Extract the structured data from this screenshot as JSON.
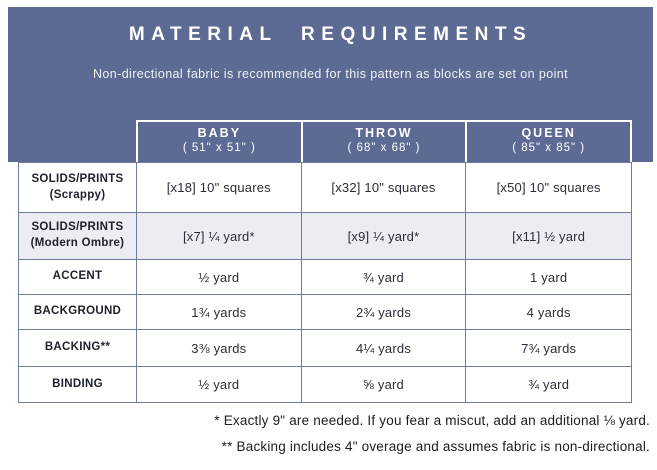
{
  "banner": {
    "title": "MATERIAL REQUIREMENTS",
    "subtitle": "Non-directional fabric is recommended for this pattern as blocks are set on point"
  },
  "table": {
    "columns": [
      {
        "name": "BABY",
        "dimensions": "( 51\" x 51\" )"
      },
      {
        "name": "THROW",
        "dimensions": "( 68\" x 68\" )"
      },
      {
        "name": "QUEEN",
        "dimensions": "( 85\" x 85\" )"
      }
    ],
    "rows": [
      {
        "label_line1": "SOLIDS/PRINTS",
        "label_line2": "(Scrappy)",
        "values": [
          "[x18] 10\" squares",
          "[x32] 10\" squares",
          "[x50] 10\" squares"
        ]
      },
      {
        "label_line1": "SOLIDS/PRINTS",
        "label_line2": "(Modern Ombre)",
        "values": [
          "[x7] ¼ yard*",
          "[x9] ¼ yard*",
          "[x11] ½ yard"
        ]
      },
      {
        "label_line1": "ACCENT",
        "label_line2": "",
        "values": [
          "½ yard",
          "¾ yard",
          "1 yard"
        ]
      },
      {
        "label_line1": "BACKGROUND",
        "label_line2": "",
        "values": [
          "1¾ yards",
          "2¾ yards",
          "4 yards"
        ]
      },
      {
        "label_line1": "BACKING**",
        "label_line2": "",
        "values": [
          "3⅜ yards",
          "4¼ yards",
          "7¾ yards"
        ]
      },
      {
        "label_line1": "BINDING",
        "label_line2": "",
        "values": [
          "½ yard",
          "⅝ yard",
          "¾ yard"
        ]
      }
    ]
  },
  "footnotes": [
    "* Exactly 9\" are needed. If you fear a miscut, add an additional ⅛ yard.",
    "** Backing includes 4\" overage and assumes fabric is non-directional."
  ],
  "colors": {
    "banner_bg": "#5d6b94",
    "table_border": "#6e7ca0",
    "shaded_row_bg": "#ececf3",
    "header_text": "#ffffff"
  }
}
